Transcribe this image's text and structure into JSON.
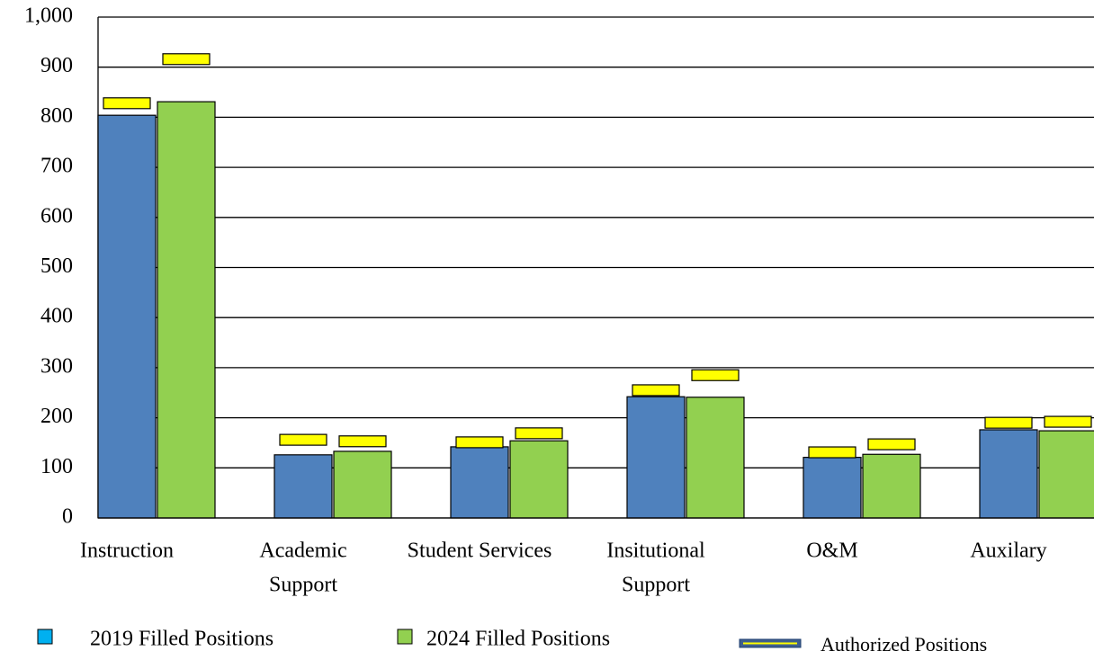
{
  "chart_data": {
    "type": "bar",
    "categories": [
      [
        "Instruction"
      ],
      [
        "Academic",
        "Support"
      ],
      [
        "Student Services"
      ],
      [
        "Insitutional",
        "Support"
      ],
      [
        "O&M"
      ],
      [
        "Auxilary"
      ]
    ],
    "series": [
      {
        "name": "2019 Filled Positions",
        "color": "#4f81bd",
        "legend_color": "#00b0f0",
        "values": [
          804,
          126,
          142,
          242,
          121,
          176
        ]
      },
      {
        "name": "2024 Filled Positions",
        "color": "#92d050",
        "legend_color": "#92d050",
        "values": [
          831,
          133,
          154,
          241,
          127,
          174
        ]
      }
    ],
    "authorized": {
      "name": "Authorized Positions",
      "color": "#ffff00",
      "values": [
        [
          828,
          916
        ],
        [
          156,
          153
        ],
        [
          151,
          169
        ],
        [
          255,
          285
        ],
        [
          131,
          147
        ],
        [
          190,
          192
        ]
      ]
    },
    "ylim": [
      0,
      1000
    ],
    "yticks": [
      0,
      100,
      200,
      300,
      400,
      500,
      600,
      700,
      800,
      900,
      {
        "value": 1000,
        "label": "1,000"
      }
    ],
    "grid": true
  }
}
